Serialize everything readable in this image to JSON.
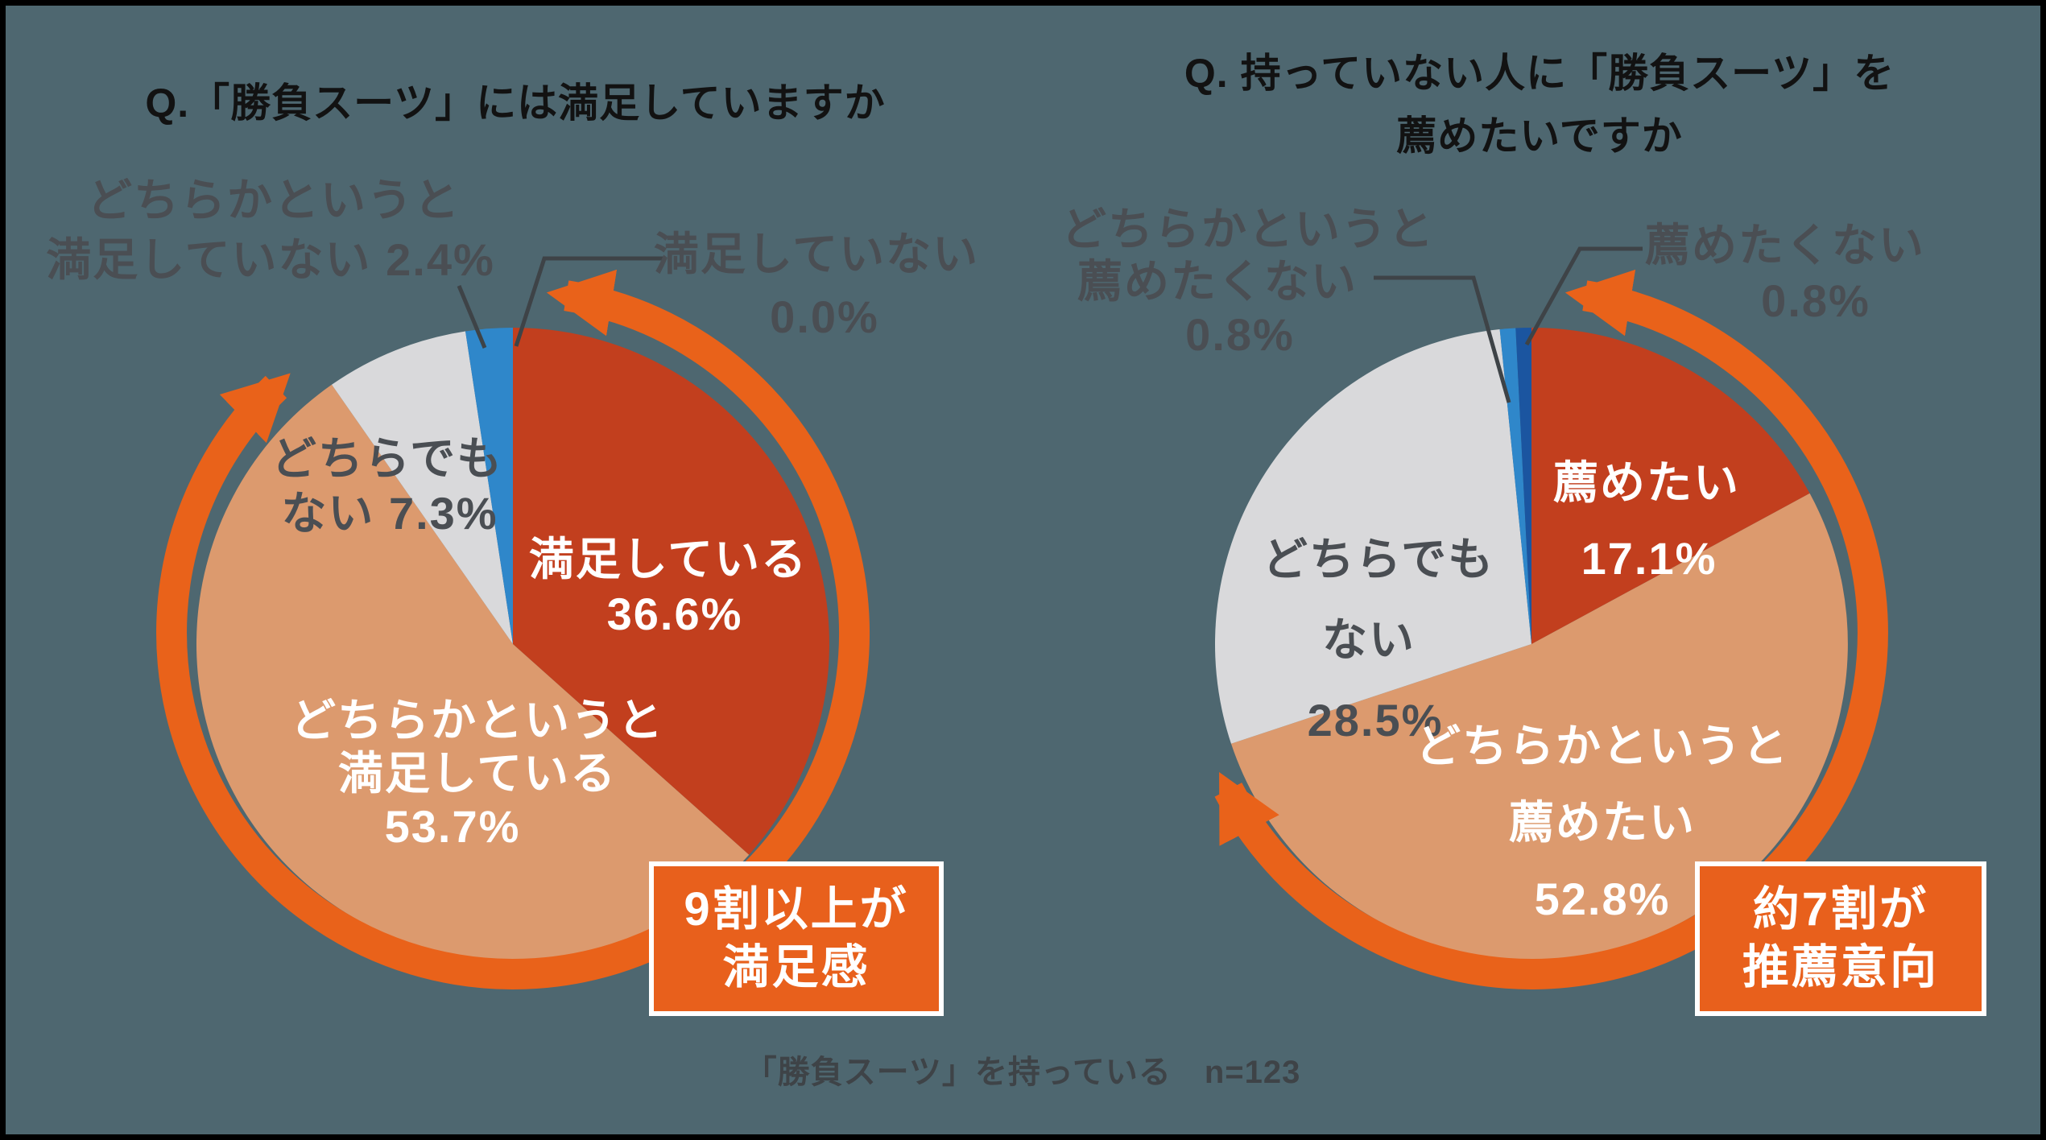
{
  "page": {
    "background_color": "#4E6770",
    "border_color": "#000000",
    "footer_note": "「勝負スーツ」を持っている　n=123"
  },
  "colors": {
    "accent_orange": "#E9621A",
    "callout_bg": "#E8601C",
    "callout_text": "#FFFFFF",
    "title_text": "#121212",
    "outside_label_text": "#4A4E53",
    "inside_label_text": "#FFFFFF",
    "leader_line": "#3E4347",
    "footer_text": "#3E4347"
  },
  "chart_data": [
    {
      "id": "satisfaction",
      "type": "pie",
      "title": "Q.「勝負スーツ」には満足していますか",
      "title_lines": [
        "Q.「勝負スーツ」には満足していますか"
      ],
      "start_angle_deg": 0,
      "direction": "clockwise",
      "slices": [
        {
          "label": "満足している",
          "value": 36.6,
          "value_text": "36.6%",
          "color": "#C23F1E",
          "label_placement": "inside-white",
          "display_lines": [
            "満足している",
            "36.6%"
          ]
        },
        {
          "label": "どちらかというと満足している",
          "value": 53.7,
          "value_text": "53.7%",
          "color": "#DC9A6E",
          "label_placement": "inside-white",
          "display_lines": [
            "どちらかというと",
            "満足している",
            "53.7%"
          ]
        },
        {
          "label": "どちらでもない",
          "value": 7.3,
          "value_text": "7.3%",
          "color": "#D9D9DB",
          "label_placement": "on-chart-dark",
          "display_lines": [
            "どちらでも",
            "ない 7.3%"
          ]
        },
        {
          "label": "どちらかというと満足していない",
          "value": 2.4,
          "value_text": "2.4%",
          "color": "#2F87CA",
          "label_placement": "outside-with-leader",
          "display_lines": [
            "どちらかというと",
            "満足していない 2.4%"
          ]
        },
        {
          "label": "満足していない",
          "value": 0.0,
          "value_text": "0.0%",
          "color": "#1B55A0",
          "label_placement": "outside-with-leader",
          "display_lines": [
            "満足していない",
            "0.0%"
          ]
        }
      ],
      "highlight_arrow": {
        "slice_indexes": [
          0,
          1
        ],
        "coverage_pct": 90.3,
        "style": "double-headed-arc",
        "color": "#E9621A"
      },
      "callout_lines": [
        "9割以上が",
        "満足感"
      ]
    },
    {
      "id": "recommendation",
      "type": "pie",
      "title": "Q. 持っていない人に「勝負スーツ」を薦めたいですか",
      "title_lines": [
        "Q. 持っていない人に「勝負スーツ」を",
        "薦めたいですか"
      ],
      "start_angle_deg": 0,
      "direction": "clockwise",
      "slices": [
        {
          "label": "薦めたい",
          "value": 17.1,
          "value_text": "17.1%",
          "color": "#C23F1E",
          "label_placement": "inside-white",
          "display_lines": [
            "薦めたい",
            "17.1%"
          ]
        },
        {
          "label": "どちらかというと薦めたい",
          "value": 52.8,
          "value_text": "52.8%",
          "color": "#DC9A6E",
          "label_placement": "inside-white",
          "display_lines": [
            "どちらかというと",
            "薦めたい",
            "52.8%"
          ]
        },
        {
          "label": "どちらでもない",
          "value": 28.5,
          "value_text": "28.5%",
          "color": "#D9D9DB",
          "label_placement": "on-chart-dark",
          "display_lines": [
            "どちらでも",
            "ない",
            "28.5%"
          ]
        },
        {
          "label": "どちらかというと薦めたくない",
          "value": 0.8,
          "value_text": "0.8%",
          "color": "#2F87CA",
          "label_placement": "outside-with-leader",
          "display_lines": [
            "どちらかというと",
            "薦めたくない",
            "0.8%"
          ]
        },
        {
          "label": "薦めたくない",
          "value": 0.8,
          "value_text": "0.8%",
          "color": "#1B55A0",
          "label_placement": "outside-with-leader",
          "display_lines": [
            "薦めたくない",
            "0.8%"
          ]
        }
      ],
      "highlight_arrow": {
        "slice_indexes": [
          0,
          1
        ],
        "coverage_pct": 69.9,
        "style": "double-headed-arc",
        "color": "#E9621A"
      },
      "callout_lines": [
        "約7割が",
        "推薦意向"
      ]
    }
  ]
}
